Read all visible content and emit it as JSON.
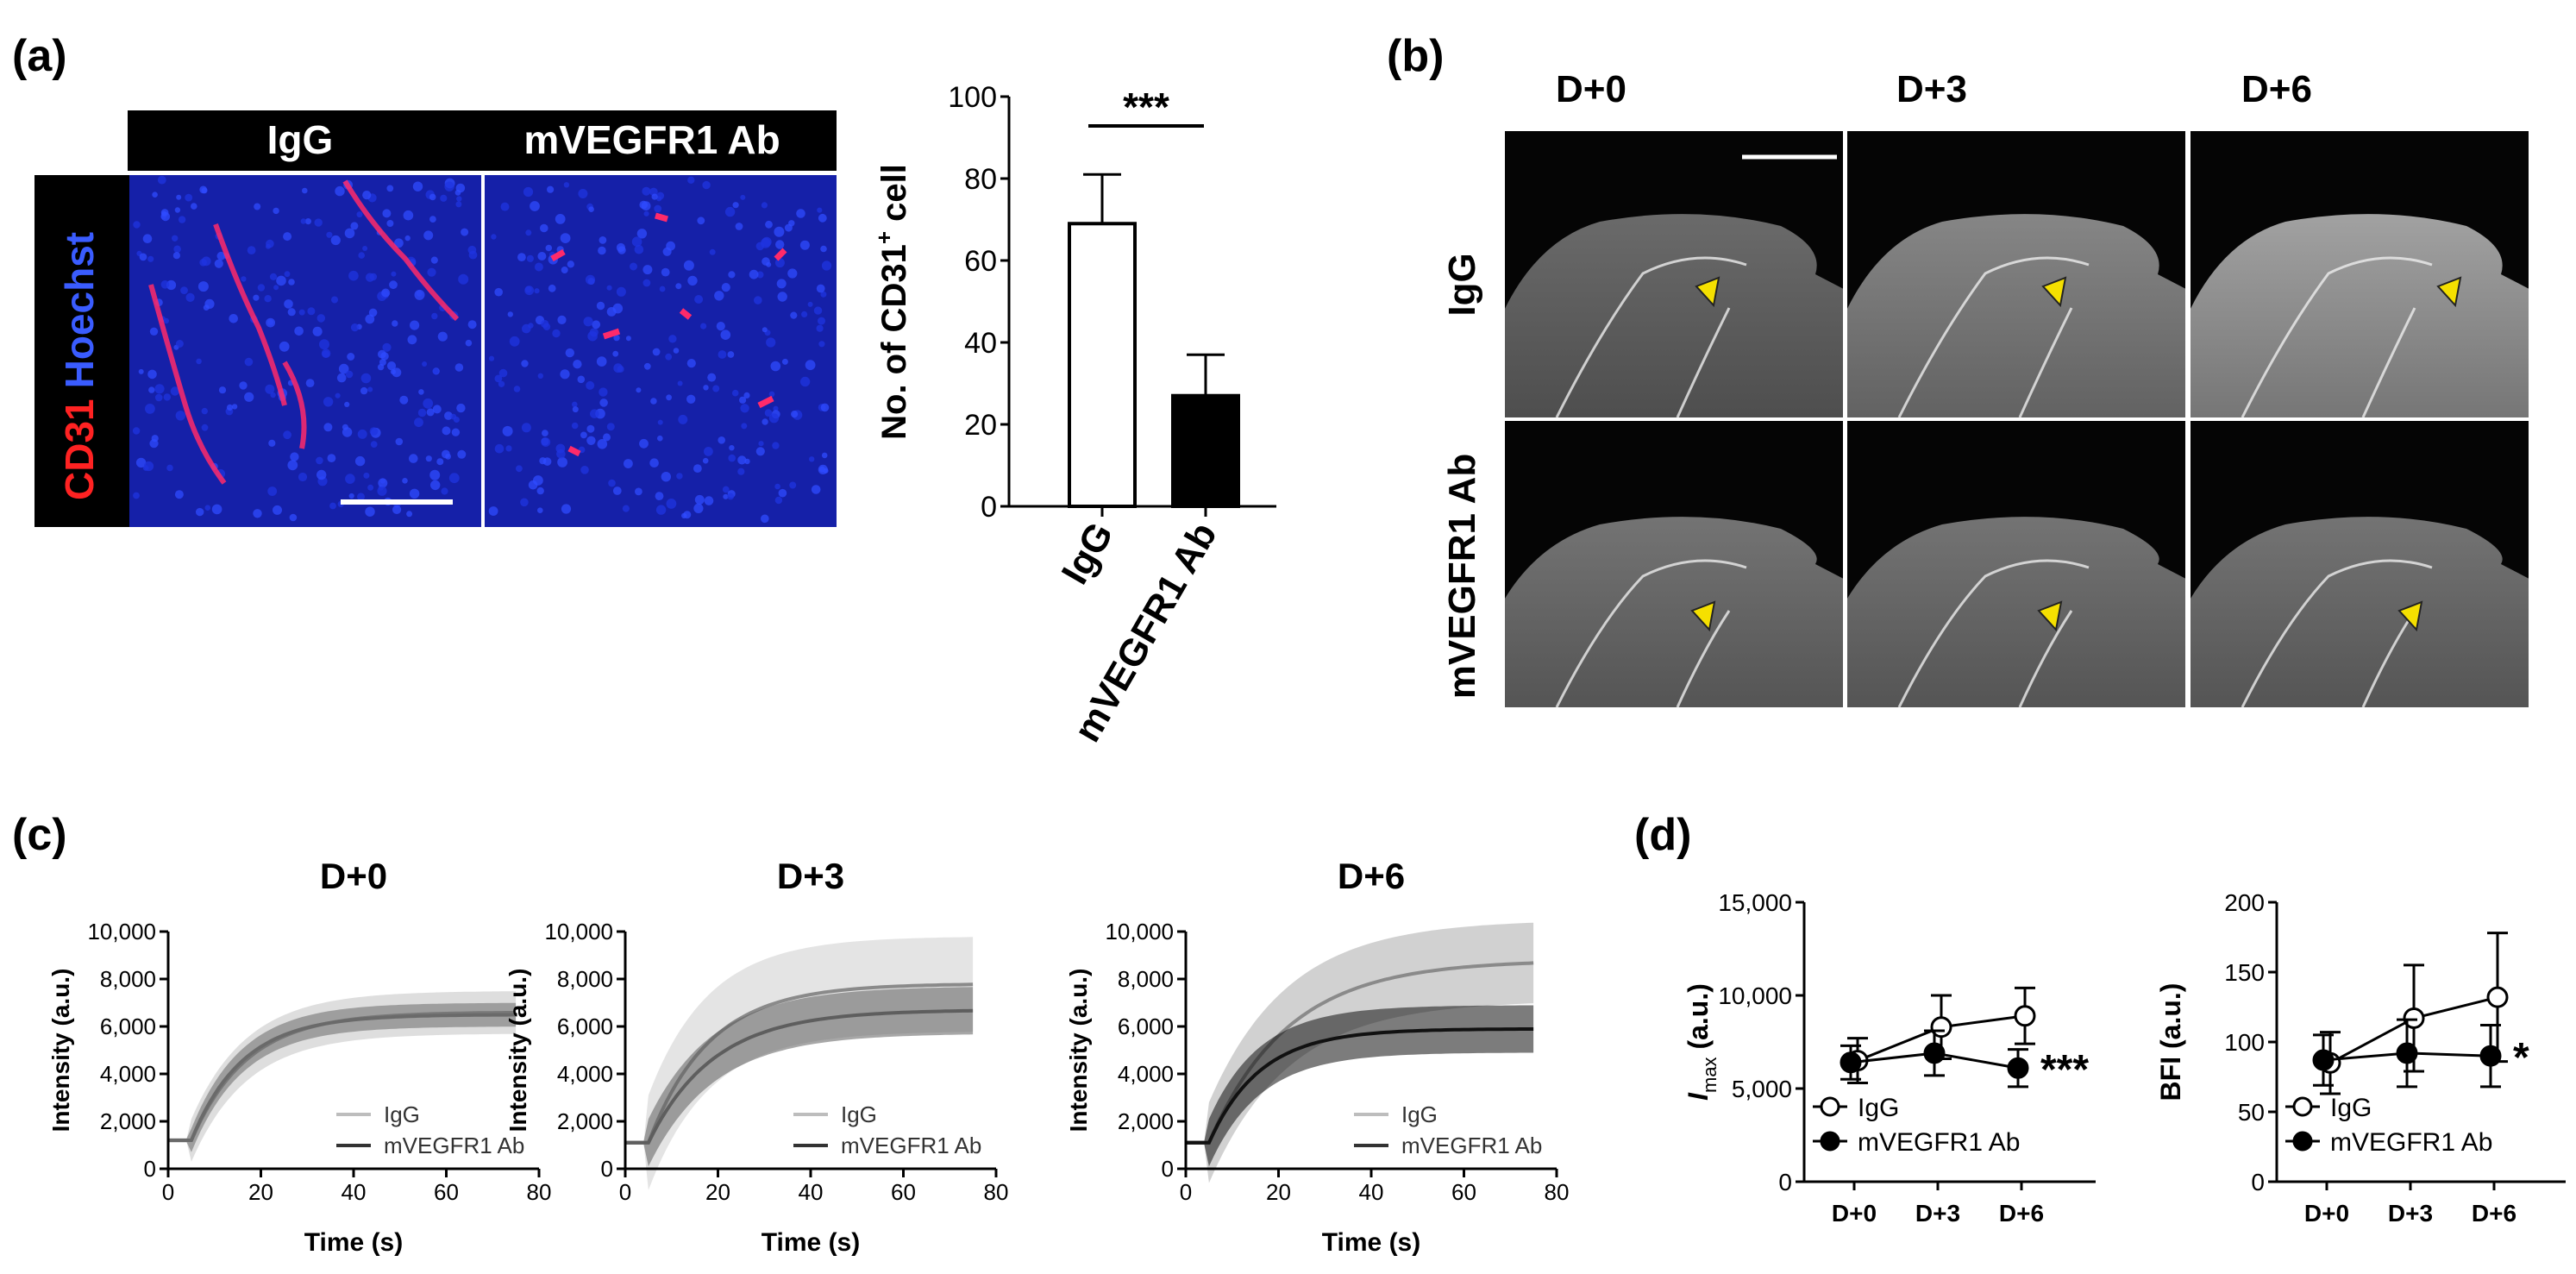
{
  "panel_labels": {
    "a": "(a)",
    "b": "(b)",
    "c": "(c)",
    "d": "(d)"
  },
  "panel_a": {
    "image_labels": [
      "IgG",
      "mVEGFR1 Ab"
    ],
    "stain_label_red": "CD31",
    "stain_label_blue": "Hoechst",
    "colors": {
      "nuclei": "#1a2fd6",
      "vessels": "#ff2a5a",
      "header": "#000000"
    }
  },
  "panel_b": {
    "columns": [
      "D+0",
      "D+3",
      "D+6"
    ],
    "rows": [
      "IgG",
      "mVEGFR1 Ab"
    ],
    "colors": {
      "arrow": "#f5e000"
    }
  },
  "chart_data": [
    {
      "id": "a-bar",
      "type": "bar",
      "title": "",
      "ylabel": "No. of CD31",
      "ylabel_sup": "+",
      "ylabel_suffix": " cell",
      "categories": [
        "IgG",
        "mVEGFR1 Ab"
      ],
      "values": [
        69,
        27
      ],
      "errors": [
        12,
        10
      ],
      "fills": [
        "#ffffff",
        "#000000"
      ],
      "ylim": [
        0,
        100
      ],
      "yticks": [
        "0",
        "20",
        "40",
        "60",
        "80",
        "100"
      ],
      "significance": "***"
    },
    {
      "id": "c-d0",
      "type": "line",
      "title": "D+0",
      "xlabel": "Time (s)",
      "ylabel": "Intensity (a.u.)",
      "xlim": [
        0,
        80
      ],
      "ylim": [
        0,
        10000
      ],
      "xticks": [
        "0",
        "20",
        "40",
        "60",
        "80"
      ],
      "yticks": [
        "0",
        "2,000",
        "4,000",
        "6,000",
        "8,000",
        "10,000"
      ],
      "legend": [
        "IgG",
        "mVEGFR1 Ab"
      ],
      "series": [
        {
          "name": "IgG",
          "baseline": 1200,
          "plateau": 6600,
          "onset": 5,
          "tau": 12,
          "band": 900,
          "color": "#b5b5b5"
        },
        {
          "name": "mVEGFR1 Ab",
          "baseline": 1200,
          "plateau": 6500,
          "onset": 5,
          "tau": 11,
          "band": 500,
          "color": "#6a6a6a"
        }
      ]
    },
    {
      "id": "c-d3",
      "type": "line",
      "title": "D+3",
      "xlabel": "Time (s)",
      "ylabel": "Intensity (a.u.)",
      "xlim": [
        0,
        80
      ],
      "ylim": [
        0,
        10000
      ],
      "xticks": [
        "0",
        "20",
        "40",
        "60",
        "80"
      ],
      "yticks": [
        "0",
        "2,000",
        "4,000",
        "6,000",
        "8,000",
        "10,000"
      ],
      "legend": [
        "IgG",
        "mVEGFR1 Ab"
      ],
      "series": [
        {
          "name": "IgG",
          "baseline": 1100,
          "plateau": 7800,
          "onset": 5,
          "tau": 13,
          "band": 2000,
          "color": "#c4c4c4"
        },
        {
          "name": "mVEGFR1 Ab",
          "baseline": 1100,
          "plateau": 6700,
          "onset": 5,
          "tau": 14,
          "band": 1000,
          "color": "#5e5e5e"
        }
      ]
    },
    {
      "id": "c-d6",
      "type": "line",
      "title": "D+6",
      "xlabel": "Time (s)",
      "ylabel": "Intensity (a.u.)",
      "xlim": [
        0,
        80
      ],
      "ylim": [
        0,
        10000
      ],
      "xticks": [
        "0",
        "20",
        "40",
        "60",
        "80"
      ],
      "yticks": [
        "0",
        "2,000",
        "4,000",
        "6,000",
        "8,000",
        "10,000"
      ],
      "legend": [
        "IgG",
        "mVEGFR1 Ab"
      ],
      "series": [
        {
          "name": "IgG",
          "baseline": 1100,
          "plateau": 8800,
          "onset": 5,
          "tau": 17,
          "band": 1700,
          "color": "#9a9a9a"
        },
        {
          "name": "mVEGFR1 Ab",
          "baseline": 1100,
          "plateau": 5900,
          "onset": 5,
          "tau": 11,
          "band": 1000,
          "color": "#111111"
        }
      ]
    },
    {
      "id": "d-imax",
      "type": "line",
      "ylabel": "I",
      "ylabel_sub": "max",
      "ylabel_suffix": " (a.u.)",
      "categories": [
        "D+0",
        "D+3",
        "D+6"
      ],
      "ylim": [
        0,
        15000
      ],
      "yticks": [
        "0",
        "5,000",
        "10,000",
        "15,000"
      ],
      "legend": [
        "IgG",
        "mVEGFR1 Ab"
      ],
      "series": [
        {
          "name": "IgG",
          "values": [
            6500,
            8300,
            8900
          ],
          "errors": [
            1200,
            1700,
            1500
          ],
          "marker": "open"
        },
        {
          "name": "mVEGFR1 Ab",
          "values": [
            6400,
            6900,
            6100
          ],
          "errors": [
            900,
            1200,
            1000
          ],
          "marker": "filled"
        }
      ],
      "significance": "***"
    },
    {
      "id": "d-bfi",
      "type": "line",
      "ylabel": "BFI (a.u.)",
      "categories": [
        "D+0",
        "D+3",
        "D+6"
      ],
      "ylim": [
        0,
        200
      ],
      "yticks": [
        "0",
        "50",
        "100",
        "150",
        "200"
      ],
      "legend": [
        "IgG",
        "mVEGFR1 Ab"
      ],
      "series": [
        {
          "name": "IgG",
          "values": [
            85,
            117,
            132
          ],
          "errors": [
            22,
            38,
            46
          ],
          "marker": "open"
        },
        {
          "name": "mVEGFR1 Ab",
          "values": [
            87,
            92,
            90
          ],
          "errors": [
            18,
            24,
            22
          ],
          "marker": "filled"
        }
      ],
      "significance": "*"
    }
  ]
}
